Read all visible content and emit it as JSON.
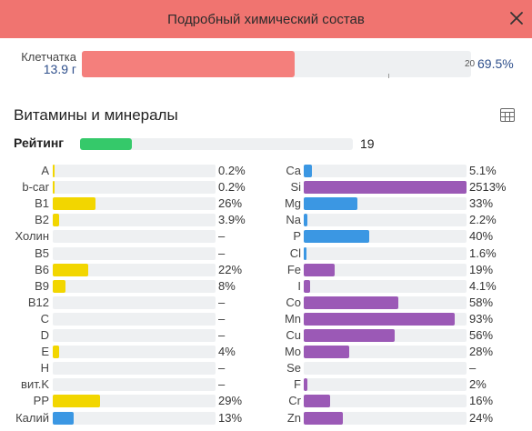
{
  "header": {
    "title": "Подробный химический состав"
  },
  "fiber": {
    "label": "Клетчатка",
    "amount": "13.9 г",
    "tick_label": "20",
    "percent": "69.5%",
    "fill_fraction": 0.546
  },
  "section": {
    "title": "Витамины и минералы"
  },
  "rating": {
    "label": "Рейтинг",
    "value": "19",
    "fill_fraction": 0.19
  },
  "colors": {
    "header": "#f07470",
    "fiber": "#f47f7c",
    "rating": "#35c96a",
    "yellow": "#f2d600",
    "blue": "#3b97e3",
    "purple": "#9b59b6",
    "track": "#eef0f2"
  },
  "vitamins": [
    {
      "name": "A",
      "value": "0.2%",
      "pct": 0.2,
      "color": "yellow"
    },
    {
      "name": "b-car",
      "value": "0.2%",
      "pct": 0.2,
      "color": "yellow"
    },
    {
      "name": "B1",
      "value": "26%",
      "pct": 26,
      "color": "yellow"
    },
    {
      "name": "B2",
      "value": "3.9%",
      "pct": 3.9,
      "color": "yellow"
    },
    {
      "name": "Холин",
      "value": "–",
      "pct": 0,
      "color": "yellow"
    },
    {
      "name": "B5",
      "value": "–",
      "pct": 0,
      "color": "yellow"
    },
    {
      "name": "B6",
      "value": "22%",
      "pct": 22,
      "color": "yellow"
    },
    {
      "name": "B9",
      "value": "8%",
      "pct": 8,
      "color": "yellow"
    },
    {
      "name": "B12",
      "value": "–",
      "pct": 0,
      "color": "yellow"
    },
    {
      "name": "C",
      "value": "–",
      "pct": 0,
      "color": "yellow"
    },
    {
      "name": "D",
      "value": "–",
      "pct": 0,
      "color": "yellow"
    },
    {
      "name": "E",
      "value": "4%",
      "pct": 4,
      "color": "yellow"
    },
    {
      "name": "H",
      "value": "–",
      "pct": 0,
      "color": "yellow"
    },
    {
      "name": "вит.K",
      "value": "–",
      "pct": 0,
      "color": "yellow"
    },
    {
      "name": "PP",
      "value": "29%",
      "pct": 29,
      "color": "yellow"
    },
    {
      "name": "Калий",
      "value": "13%",
      "pct": 13,
      "color": "blue"
    }
  ],
  "minerals": [
    {
      "name": "Ca",
      "value": "5.1%",
      "pct": 5.1,
      "color": "blue"
    },
    {
      "name": "Si",
      "value": "2513%",
      "pct": 2513,
      "color": "purple"
    },
    {
      "name": "Mg",
      "value": "33%",
      "pct": 33,
      "color": "blue"
    },
    {
      "name": "Na",
      "value": "2.2%",
      "pct": 2.2,
      "color": "blue"
    },
    {
      "name": "P",
      "value": "40%",
      "pct": 40,
      "color": "blue"
    },
    {
      "name": "Cl",
      "value": "1.6%",
      "pct": 1.6,
      "color": "blue"
    },
    {
      "name": "Fe",
      "value": "19%",
      "pct": 19,
      "color": "purple"
    },
    {
      "name": "I",
      "value": "4.1%",
      "pct": 4.1,
      "color": "purple"
    },
    {
      "name": "Co",
      "value": "58%",
      "pct": 58,
      "color": "purple"
    },
    {
      "name": "Mn",
      "value": "93%",
      "pct": 93,
      "color": "purple"
    },
    {
      "name": "Cu",
      "value": "56%",
      "pct": 56,
      "color": "purple"
    },
    {
      "name": "Mo",
      "value": "28%",
      "pct": 28,
      "color": "purple"
    },
    {
      "name": "Se",
      "value": "–",
      "pct": 0,
      "color": "purple"
    },
    {
      "name": "F",
      "value": "2%",
      "pct": 2,
      "color": "purple"
    },
    {
      "name": "Cr",
      "value": "16%",
      "pct": 16,
      "color": "purple"
    },
    {
      "name": "Zn",
      "value": "24%",
      "pct": 24,
      "color": "purple"
    }
  ]
}
